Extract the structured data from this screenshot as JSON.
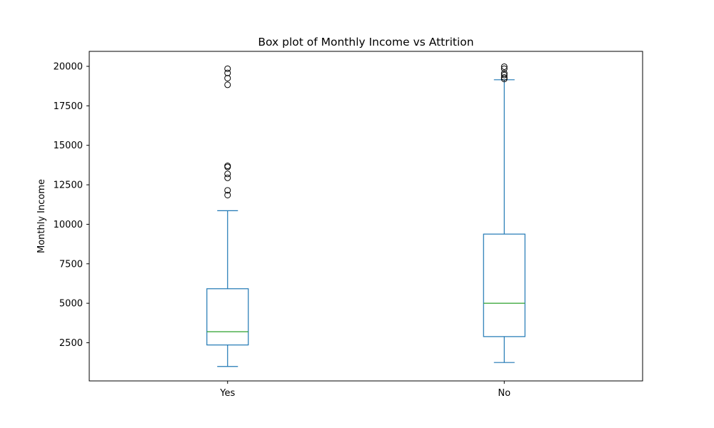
{
  "chart_data": {
    "type": "box",
    "title": "Box plot of Monthly Income vs Attrition",
    "xlabel": "",
    "ylabel": "Monthly Income",
    "ylim": [
      0,
      21000
    ],
    "yticks": [
      2500,
      5000,
      7500,
      10000,
      12500,
      15000,
      17500,
      20000
    ],
    "ytick_labels": [
      "2500",
      "5000",
      "7500",
      "10000",
      "12500",
      "15000",
      "17500",
      "20000"
    ],
    "categories": [
      "Yes",
      "No"
    ],
    "boxes": [
      {
        "category": "Yes",
        "whisker_low": 1000,
        "q1": 2360,
        "median": 3200,
        "q3": 5920,
        "whisker_high": 10860,
        "outliers": [
          11850,
          12150,
          12940,
          13190,
          13630,
          13700,
          18830,
          19250,
          19580,
          19850
        ]
      },
      {
        "category": "No",
        "whisker_low": 1250,
        "q1": 2890,
        "median": 5000,
        "q3": 9380,
        "whisker_high": 19150,
        "outliers": [
          19200,
          19300,
          19450,
          19560,
          19850,
          19980
        ]
      }
    ],
    "colors": {
      "box": "#1f77b4",
      "median": "#2ca02c",
      "flier": "#000000"
    },
    "grid": false,
    "legend": "none"
  }
}
